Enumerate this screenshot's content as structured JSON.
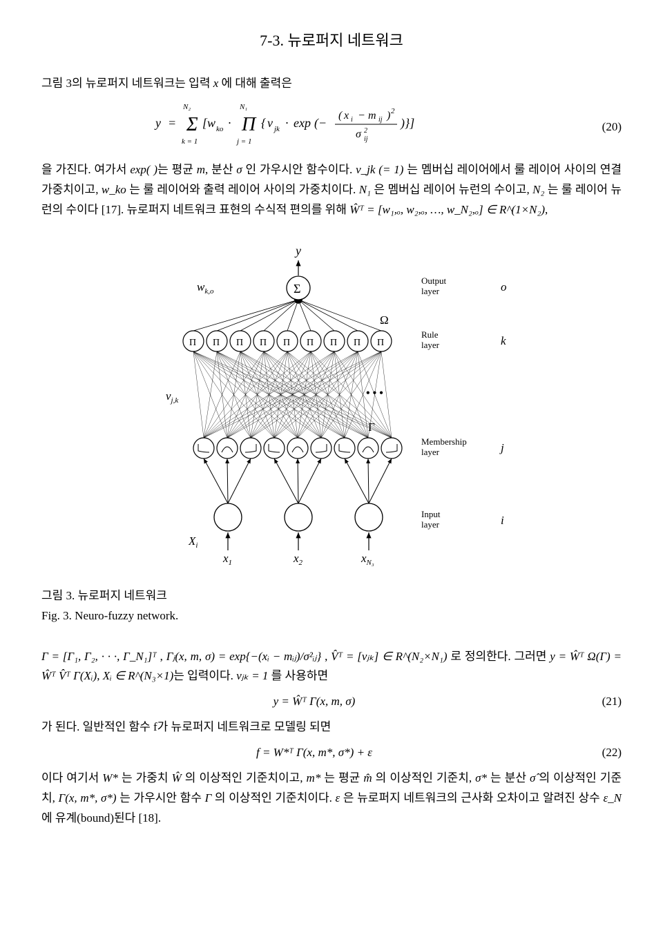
{
  "section": {
    "title": "7-3. 뉴로퍼지 네트워크"
  },
  "paragraphs": {
    "p1_prefix": "그림 3의 뉴로퍼지 네트워크는 입력 ",
    "p1_x": "x",
    "p1_suffix": " 에 대해 출력은",
    "p2_part1": "을 가진다. 여가서 ",
    "p2_exp": "exp( )",
    "p2_part2": "는 평균 ",
    "p2_m": "m",
    "p2_part3": ", 분산 ",
    "p2_sigma": "σ",
    "p2_part4": " 인 가우시안 함수이다. ",
    "p2_vjk": "v_jk (= 1)",
    "p2_part5": " 는 멤버십 레이어에서 룰 레이어 사이의 연결 가중치이고, ",
    "p2_wko": "w_ko",
    "p2_part6": " 는 룰 레이어와 출력 레이어 사이의 가중치이다. ",
    "p2_N1": "N₁",
    "p2_part7": " 은 멤버십 레이어 뉴런의 수이고, ",
    "p2_N2": "N₂",
    "p2_part8": " 는 룰 레이어 뉴런의 수이다 [17]. 뉴로퍼지 네트워크 표현의 수식적 편의를 위해 ",
    "p2_WT": "Ŵᵀ = [w₁,ₒ, w₂,ₒ, …, w_N₂,ₒ] ∈ R^(1×N₂)",
    "p2_part9": ",",
    "p3_part1": "Γ = [Γ₁, Γ₂, · · ·, Γ_N₁]ᵀ",
    "p3_part2": " , ",
    "p3_gammaj": "Γⱼ(x, m, σ) = exp{−(xᵢ − mᵢⱼ)/σ²ᵢⱼ}",
    "p3_part3": " , ",
    "p3_VT": "V̂ᵀ = [vⱼₖ] ∈ R^(N₂×N₁)",
    "p3_part4": " 로 정의한다. 그러면 ",
    "p3_y": "y = Ŵᵀ Ω(Γ) = Ŵᵀ V̂ᵀ Γ(Xᵢ)",
    "p3_part5": ", ",
    "p3_Xi": "Xᵢ ∈ R^(N₃×1)",
    "p3_part6": "는 입력이다. ",
    "p3_vjk1": "vⱼₖ = 1",
    "p3_part7": " 를 사용하면",
    "p4": "가 된다. 일반적인 함수 f가 뉴로퍼지 네트워크로 모델링 되면",
    "p5_part1": "이다 여기서 ",
    "p5_Wstar": "W*",
    "p5_part2": " 는 가중치 ",
    "p5_What": "Ŵ",
    "p5_part3": " 의 이상적인 기준치이고, ",
    "p5_mstar": "m*",
    "p5_part4": " 는 평균 ",
    "p5_mhat": "m̂",
    "p5_part5": " 의 이상적인 기준치, ",
    "p5_sigmastar": "σ*",
    "p5_part6": " 는 분산 ",
    "p5_sigmahat": "σ̂",
    "p5_part7": " 의 이상적인 기준치, ",
    "p5_Gamma": "Γ(x, m*, σ*)",
    "p5_part8": " 는 가우시안 함수 ",
    "p5_Gamma2": "Γ",
    "p5_part9": " 의 이상적인 기준치이다. ",
    "p5_eps": "ε",
    "p5_part10": " 은 뉴로퍼지 네트워크의 근사화 오차이고 알려진 상수 ",
    "p5_epsN": "ε_N",
    "p5_part11": " 에 유계(bound)된다 [18]."
  },
  "equations": {
    "eq20": {
      "number": "(20)"
    },
    "eq21": {
      "text": "y = Ŵᵀ Γ(x, m, σ)",
      "number": "(21)"
    },
    "eq22": {
      "text": "f = W*ᵀ Γ(x, m*, σ*) + ε",
      "number": "(22)"
    }
  },
  "figure": {
    "caption_line1": "그림 3. 뉴로퍼지 네트워크",
    "caption_line2": "Fig. 3. Neuro-fuzzy network.",
    "labels": {
      "y": "y",
      "sigma_node": "Σ",
      "wko": "w_{k,o}",
      "output_layer": "Output\nlayer",
      "o": "o",
      "omega": "Ω",
      "pi": "Π",
      "rule_layer": "Rule\nlayer",
      "k": "k",
      "vjk": "v_{j,k}",
      "gamma": "Γ",
      "membership_layer": "Membership\nlayer",
      "j": "j",
      "Xi": "X_i",
      "x1": "x₁",
      "x2": "x₂",
      "xN3": "x_{N₃}",
      "input_layer": "Input\nlayer",
      "i": "i",
      "dots": "• • •"
    },
    "style": {
      "node_stroke": "#000000",
      "node_fill": "#ffffff",
      "line_stroke": "#000000",
      "font_size_label": 14,
      "font_size_italic": 16,
      "node_radius": 16,
      "input_radius": 20
    }
  }
}
